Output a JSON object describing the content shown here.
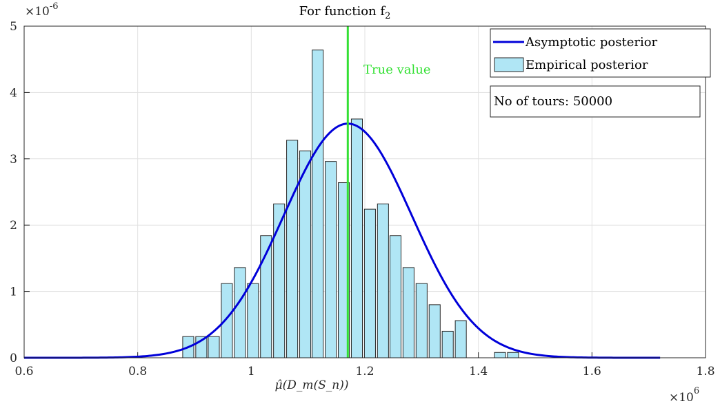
{
  "chart_data": {
    "type": "bar",
    "title": "For function f",
    "title_subscript": "2",
    "xlabel": "μ̂(D_m(S_n))",
    "ylabel": "",
    "xlim": [
      0.6,
      1.8
    ],
    "ylim": [
      0,
      5
    ],
    "x_ticks": [
      "0.6",
      "0.8",
      "1",
      "1.2",
      "1.4",
      "1.6",
      "1.8"
    ],
    "y_ticks": [
      "0",
      "1",
      "2",
      "3",
      "4",
      "5"
    ],
    "x_multiplier": "×10",
    "x_multiplier_exp": "6",
    "y_multiplier": "×10",
    "y_multiplier_exp": "-6",
    "grid": true,
    "legend_position": "top-right",
    "legend": [
      "Asymptotic posterior",
      "Empirical posterior"
    ],
    "bars": {
      "name": "Empirical posterior",
      "color": "#b0e6f5",
      "x": [
        0.889,
        0.912,
        0.934,
        0.957,
        0.98,
        1.003,
        1.026,
        1.049,
        1.072,
        1.095,
        1.117,
        1.14,
        1.163,
        1.186,
        1.209,
        1.232,
        1.254,
        1.277,
        1.3,
        1.323,
        1.346,
        1.369,
        1.392,
        1.415,
        1.438,
        1.461,
        1.484
      ],
      "values": [
        0.32,
        0.32,
        0.32,
        1.12,
        1.36,
        1.12,
        1.84,
        2.32,
        3.28,
        3.12,
        4.64,
        2.96,
        2.64,
        3.6,
        2.24,
        2.32,
        1.84,
        1.36,
        1.12,
        0.8,
        0.4,
        0.56,
        0.0,
        0.0,
        0.08,
        0.08,
        0.0
      ]
    },
    "curve": {
      "name": "Asymptotic posterior",
      "color": "#0000d9",
      "mean": 1.17,
      "std": 0.113,
      "peak": 3.53,
      "x_range": [
        0.6,
        1.72
      ]
    },
    "true_value": {
      "x": 1.17,
      "label": "True value",
      "color": "#33e033"
    },
    "annotation": "No of tours: 50000"
  }
}
